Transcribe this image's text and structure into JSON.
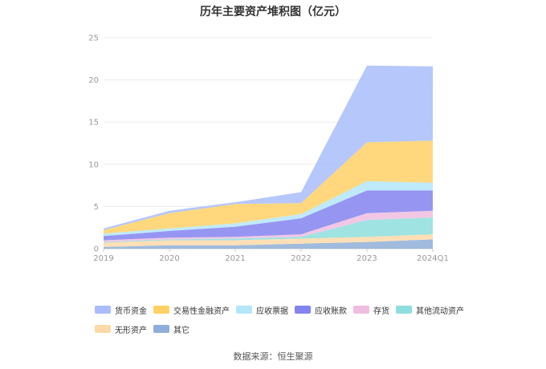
{
  "chart_data": {
    "type": "area",
    "title": "历年主要资产堆积图（亿元）",
    "xlabel": "",
    "ylabel": "",
    "categories": [
      "2019",
      "2020",
      "2021",
      "2022",
      "2023",
      "2024Q1"
    ],
    "ylim": [
      0,
      25
    ],
    "yticks": [
      0,
      5,
      10,
      15,
      20,
      25
    ],
    "grid": true,
    "stacked": true,
    "legend_position": "bottom",
    "series": [
      {
        "name": "其它",
        "color": "#8fafd8",
        "values": [
          0.2,
          0.4,
          0.4,
          0.6,
          0.8,
          1.1
        ]
      },
      {
        "name": "无形资产",
        "color": "#ffd9a8",
        "values": [
          0.5,
          0.6,
          0.6,
          0.6,
          0.6,
          0.6
        ]
      },
      {
        "name": "其他流动资产",
        "color": "#8edede",
        "values": [
          0.1,
          0.1,
          0.2,
          0.2,
          2.0,
          2.0
        ]
      },
      {
        "name": "存货",
        "color": "#f0bde0",
        "values": [
          0.2,
          0.2,
          0.2,
          0.3,
          0.8,
          0.8
        ]
      },
      {
        "name": "应收账款",
        "color": "#8484f0",
        "values": [
          0.5,
          0.8,
          1.2,
          1.9,
          2.7,
          2.4
        ]
      },
      {
        "name": "应收票据",
        "color": "#b4e6f8",
        "values": [
          0.3,
          0.3,
          0.4,
          0.5,
          1.1,
          0.9
        ]
      },
      {
        "name": "交易性金融资产",
        "color": "#ffd166",
        "values": [
          0.4,
          1.8,
          2.3,
          1.3,
          4.6,
          5.0
        ]
      },
      {
        "name": "货币资金",
        "color": "#a9bdfc",
        "values": [
          0.2,
          0.3,
          0.2,
          1.3,
          9.1,
          8.8
        ]
      }
    ]
  },
  "legend_order": [
    "货币资金",
    "交易性金融资产",
    "应收票据",
    "应收账款",
    "存货",
    "其他流动资产",
    "无形资产",
    "其它"
  ],
  "source_text": "数据来源：恒生聚源"
}
